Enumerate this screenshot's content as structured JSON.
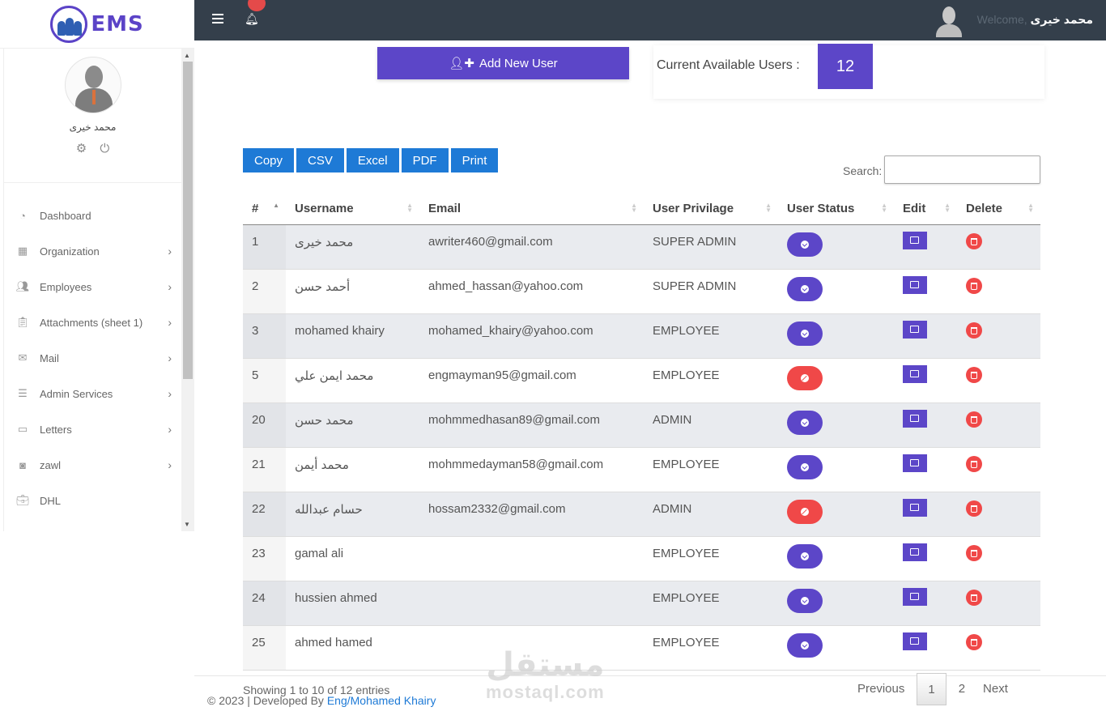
{
  "app": {
    "logo_text": "EMS"
  },
  "topbar": {
    "welcome": "Welcome,",
    "user": "محمد خيرى"
  },
  "profile": {
    "name": "محمد خيرى"
  },
  "sidebar": {
    "items": [
      {
        "label": "Dashboard",
        "icon": "dashboard-icon",
        "chevron": false
      },
      {
        "label": "Organization",
        "icon": "building-icon",
        "chevron": true
      },
      {
        "label": "Employees",
        "icon": "users-icon",
        "chevron": true
      },
      {
        "label": "Attachments (sheet 1)",
        "icon": "clipboard-icon",
        "chevron": true
      },
      {
        "label": "Mail",
        "icon": "mail-icon",
        "chevron": true
      },
      {
        "label": "Admin Services",
        "icon": "list-icon",
        "chevron": true
      },
      {
        "label": "Letters",
        "icon": "letter-icon",
        "chevron": true
      },
      {
        "label": "zawl",
        "icon": "money-icon",
        "chevron": true
      },
      {
        "label": "DHL",
        "icon": "briefcase-icon",
        "chevron": false
      }
    ]
  },
  "actions": {
    "add_user": "Add New User",
    "available_label": "Current Available Users :",
    "available_count": "12"
  },
  "exports": [
    "Copy",
    "CSV",
    "Excel",
    "PDF",
    "Print"
  ],
  "search": {
    "label": "Search:",
    "value": ""
  },
  "table": {
    "headers": [
      "#",
      "Username",
      "Email",
      "User Privilage",
      "User Status",
      "Edit",
      "Delete"
    ],
    "rows": [
      {
        "id": "1",
        "username": "محمد خيرى",
        "email": "awriter460@gmail.com",
        "privilege": "SUPER ADMIN",
        "active": true
      },
      {
        "id": "2",
        "username": "أحمد حسن",
        "email": "ahmed_hassan@yahoo.com",
        "privilege": "SUPER ADMIN",
        "active": true
      },
      {
        "id": "3",
        "username": "mohamed khairy",
        "email": "mohamed_khairy@yahoo.com",
        "privilege": "EMPLOYEE",
        "active": true
      },
      {
        "id": "5",
        "username": "محمد ايمن علي",
        "email": "engmayman95@gmail.com",
        "privilege": "EMPLOYEE",
        "active": false
      },
      {
        "id": "20",
        "username": "محمد حسن",
        "email": "mohmmedhasan89@gmail.com",
        "privilege": "ADMIN",
        "active": true
      },
      {
        "id": "21",
        "username": "محمد أيمن",
        "email": "mohmmedayman58@gmail.com",
        "privilege": "EMPLOYEE",
        "active": true
      },
      {
        "id": "22",
        "username": "حسام عبدالله",
        "email": "hossam2332@gmail.com",
        "privilege": "ADMIN",
        "active": false
      },
      {
        "id": "23",
        "username": "gamal ali",
        "email": "",
        "privilege": "EMPLOYEE",
        "active": true
      },
      {
        "id": "24",
        "username": "hussien ahmed",
        "email": "",
        "privilege": "EMPLOYEE",
        "active": true
      },
      {
        "id": "25",
        "username": "ahmed hamed",
        "email": "",
        "privilege": "EMPLOYEE",
        "active": true
      }
    ]
  },
  "footer": {
    "showing": "Showing 1 to 10 of 12 entries",
    "copyright": "© 2023 | Developed By ",
    "developer": "Eng/Mohamed Khairy",
    "pager": {
      "previous": "Previous",
      "current": "1",
      "page2": "2",
      "next": "Next"
    },
    "watermark_ar": "مستقل",
    "watermark_en": "mostaql.com"
  },
  "colors": {
    "accent": "#5c46c8",
    "topbar": "#343f4b",
    "export": "#1e7ad6",
    "danger": "#f04848"
  }
}
